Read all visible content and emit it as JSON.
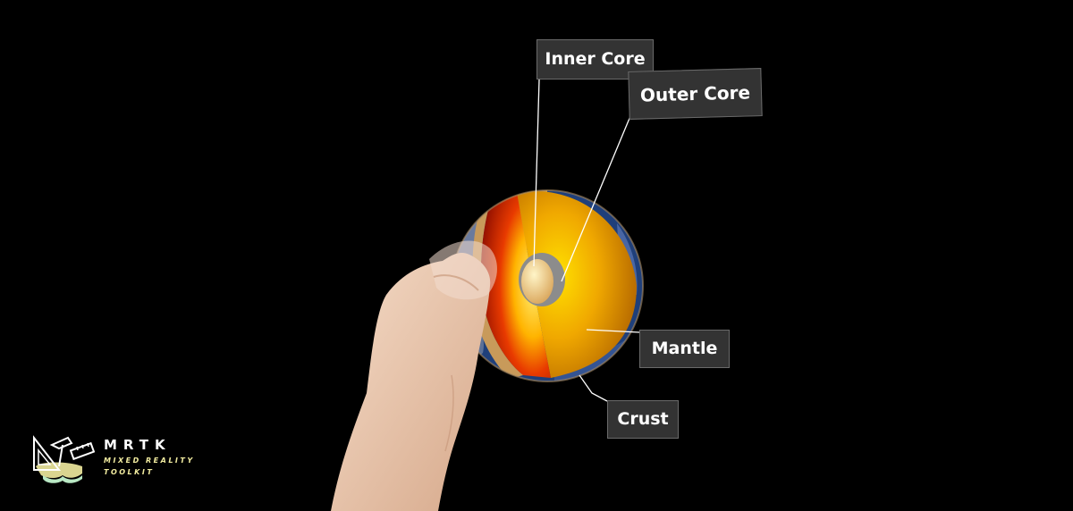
{
  "labels": {
    "inner_core": "Inner Core",
    "outer_core": "Outer Core",
    "mantle": "Mantle",
    "crust": "Crust"
  },
  "logo": {
    "title": "MRTK",
    "subtitle_line1": "MIXED REALITY",
    "subtitle_line2": "TOOLKIT",
    "icon": "mrtk-logo-icon"
  },
  "colors": {
    "background": "#000000",
    "label_background": "#333333",
    "label_text": "#ffffff",
    "logo_subtitle": "#f2eca0",
    "inner_core": "#f2d39a",
    "outer_core": "#8c8c8c",
    "mantle": "#e8a000",
    "crust": "#c79a55"
  },
  "icons": {
    "earth_model": "earth-cross-section-hologram",
    "hand": "hand"
  }
}
